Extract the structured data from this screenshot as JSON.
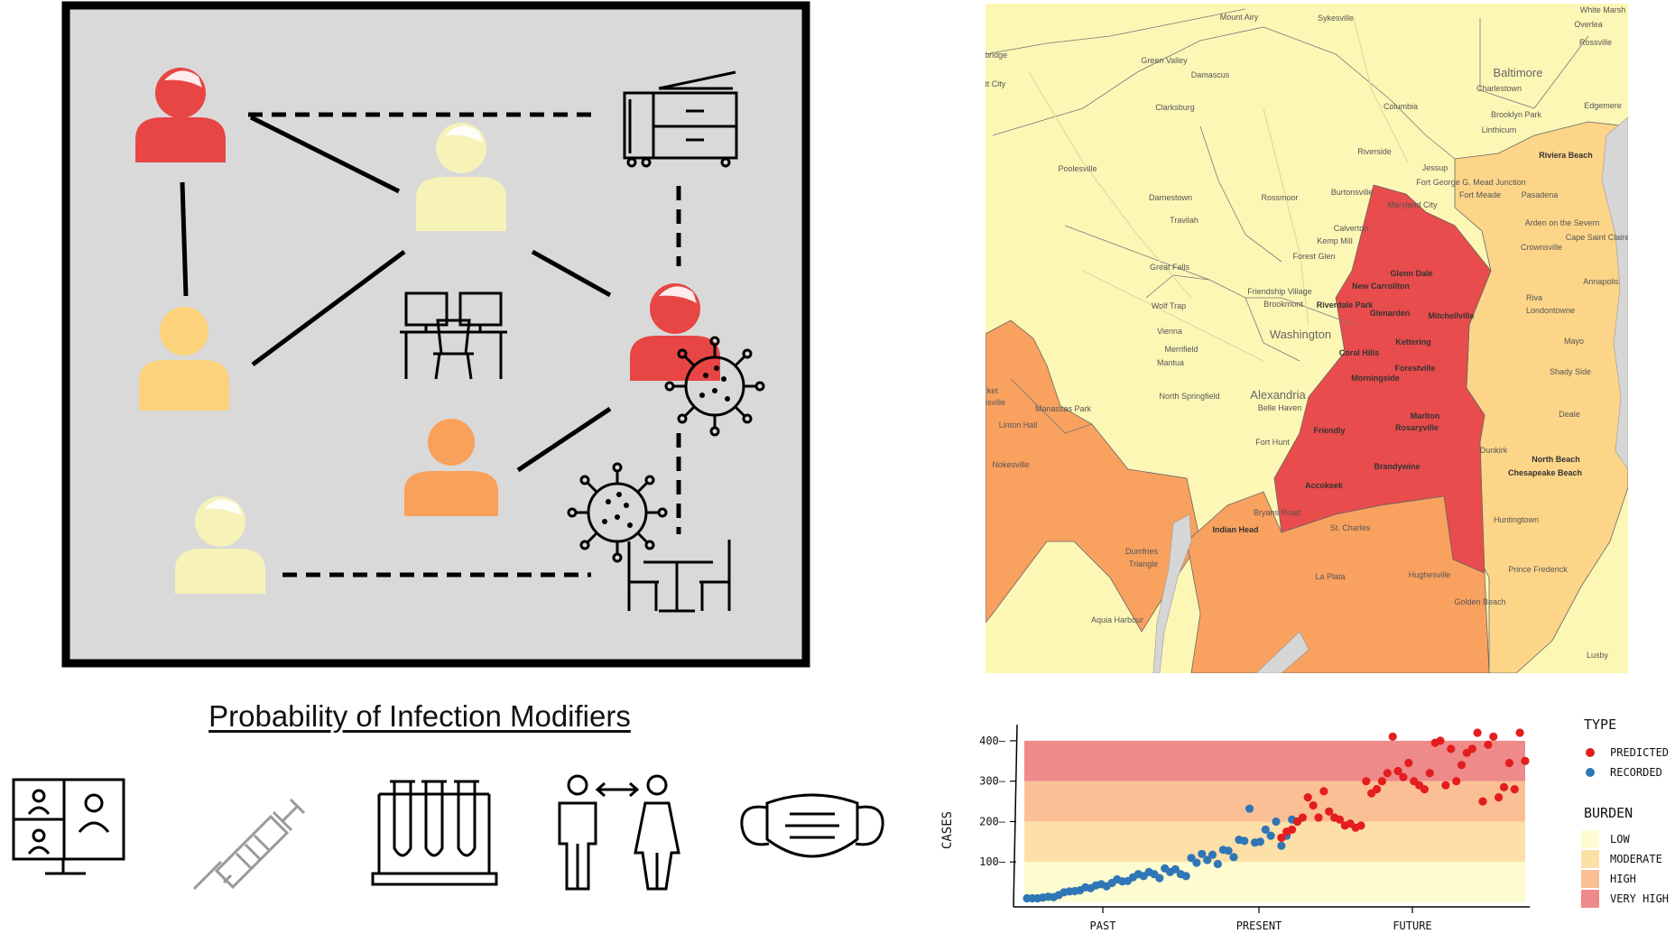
{
  "diagram": {
    "title": "Probability of Infection Modifiers",
    "people": [
      {
        "id": "p1",
        "status": "infected",
        "color": "#e84545"
      },
      {
        "id": "p2",
        "status": "low",
        "color": "#f6f2b8"
      },
      {
        "id": "p3",
        "status": "moderate",
        "color": "#fcd27a"
      },
      {
        "id": "p4",
        "status": "infected",
        "color": "#e84545"
      },
      {
        "id": "p5",
        "status": "high",
        "color": "#f9a05a"
      },
      {
        "id": "p6",
        "status": "low",
        "color": "#f6f2b8"
      }
    ],
    "objects": [
      "printer-icon",
      "workstation-icon",
      "cafe-table-icon",
      "virus-icon"
    ],
    "modifiers": [
      "video-call-icon",
      "syringe-icon",
      "test-tubes-icon",
      "social-distance-icon",
      "face-mask-icon"
    ]
  },
  "map": {
    "colors": {
      "low": "#fdf7b6",
      "moderate": "#fdd589",
      "high": "#f9a15f",
      "very_high": "#e84c4c",
      "water": "#d6d6d6"
    },
    "places": [
      {
        "name": "Mount Airy"
      },
      {
        "name": "Sykesville"
      },
      {
        "name": "White Marsh"
      },
      {
        "name": "Overlea"
      },
      {
        "name": "Rossville"
      },
      {
        "name": "Baltimore"
      },
      {
        "name": "Green Valley"
      },
      {
        "name": "Damascus"
      },
      {
        "name": "Charlestown"
      },
      {
        "name": "Edgemere"
      },
      {
        "name": "Clarksburg"
      },
      {
        "name": "Columbia"
      },
      {
        "name": "Brooklyn Park"
      },
      {
        "name": "Linthicum"
      },
      {
        "name": "Riviera Beach"
      },
      {
        "name": "Poolesville"
      },
      {
        "name": "Riverside"
      },
      {
        "name": "Jessup"
      },
      {
        "name": "Fort George G. Mead Junction"
      },
      {
        "name": "Fort Meade"
      },
      {
        "name": "Pasadena"
      },
      {
        "name": "Darnestown"
      },
      {
        "name": "Rossmoor"
      },
      {
        "name": "Burtonsville"
      },
      {
        "name": "Maryland City"
      },
      {
        "name": "Travilah"
      },
      {
        "name": "Calverton"
      },
      {
        "name": "Arden on the Severn"
      },
      {
        "name": "Kemp Mill"
      },
      {
        "name": "Cape Saint Claire"
      },
      {
        "name": "Forest Glen"
      },
      {
        "name": "Crownsville"
      },
      {
        "name": "Great Falls"
      },
      {
        "name": "Glenn Dale"
      },
      {
        "name": "New Carrollton"
      },
      {
        "name": "Annapolis"
      },
      {
        "name": "Friendship Village"
      },
      {
        "name": "Riva"
      },
      {
        "name": "Wolf Trap"
      },
      {
        "name": "Brookmont"
      },
      {
        "name": "Riverdale Park"
      },
      {
        "name": "Glenarden"
      },
      {
        "name": "Mitchellville"
      },
      {
        "name": "Londontowne"
      },
      {
        "name": "Washington"
      },
      {
        "name": "Vienna"
      },
      {
        "name": "Merrifield"
      },
      {
        "name": "Mantua"
      },
      {
        "name": "Coral Hills"
      },
      {
        "name": "Kettering"
      },
      {
        "name": "Mayo"
      },
      {
        "name": "Shady Side"
      },
      {
        "name": "Forestville"
      },
      {
        "name": "Morningside"
      },
      {
        "name": "Alexandria"
      },
      {
        "name": "North Springfield"
      },
      {
        "name": "Belle Haven"
      },
      {
        "name": "Market"
      },
      {
        "name": "Gainesville"
      },
      {
        "name": "Manassas Park"
      },
      {
        "name": "Marlton"
      },
      {
        "name": "Rosaryville"
      },
      {
        "name": "Deale"
      },
      {
        "name": "Linton Hall"
      },
      {
        "name": "Friendly"
      },
      {
        "name": "Fort Hunt"
      },
      {
        "name": "Dunkirk"
      },
      {
        "name": "North Beach"
      },
      {
        "name": "Chesapeake Beach"
      },
      {
        "name": "Nokesville"
      },
      {
        "name": "Brandywine"
      },
      {
        "name": "Accokeek"
      },
      {
        "name": "Huntingtown"
      },
      {
        "name": "Bryans Road"
      },
      {
        "name": "Indian Head"
      },
      {
        "name": "St. Charles"
      },
      {
        "name": "Dumfries"
      },
      {
        "name": "Triangle"
      },
      {
        "name": "La Plata"
      },
      {
        "name": "Hughesville"
      },
      {
        "name": "Prince Frederick"
      },
      {
        "name": "Aquia Harbour"
      },
      {
        "name": "Golden Beach"
      },
      {
        "name": "Lusby"
      },
      {
        "name": "Woodbridge"
      },
      {
        "name": "Ellicott City"
      }
    ]
  },
  "chart_data": {
    "type": "scatter",
    "xlabel": "",
    "ylabel": "CASES",
    "xticks": [
      "PAST",
      "PRESENT",
      "FUTURE"
    ],
    "yticks": [
      "100",
      "200",
      "300",
      "400"
    ],
    "ylim": [
      0,
      440
    ],
    "x_index_range": [
      0,
      72
    ],
    "bands": [
      {
        "name": "LOW",
        "from": 0,
        "to": 100,
        "color": "#fdfcd0"
      },
      {
        "name": "MODERATE",
        "from": 100,
        "to": 200,
        "color": "#fde0a8"
      },
      {
        "name": "HIGH",
        "from": 200,
        "to": 300,
        "color": "#fbbf96"
      },
      {
        "name": "VERY HIGH",
        "from": 300,
        "to": 400,
        "color": "#ee8a8a"
      }
    ],
    "legend": {
      "type_title": "TYPE",
      "burden_title": "BURDEN",
      "placement": "right"
    },
    "series": [
      {
        "name": "RECORDED",
        "color": "#2f76b6",
        "points": [
          [
            0,
            10
          ],
          [
            1,
            10
          ],
          [
            2,
            10
          ],
          [
            3,
            12
          ],
          [
            4,
            14
          ],
          [
            5,
            13
          ],
          [
            6,
            18
          ],
          [
            7,
            25
          ],
          [
            8,
            27
          ],
          [
            9,
            28
          ],
          [
            10,
            30
          ],
          [
            11,
            37
          ],
          [
            12,
            35
          ],
          [
            13,
            42
          ],
          [
            14,
            45
          ],
          [
            15,
            40
          ],
          [
            16,
            48
          ],
          [
            17,
            57
          ],
          [
            18,
            52
          ],
          [
            19,
            53
          ],
          [
            20,
            62
          ],
          [
            21,
            70
          ],
          [
            22,
            65
          ],
          [
            23,
            75
          ],
          [
            24,
            70
          ],
          [
            25,
            60
          ],
          [
            26,
            84
          ],
          [
            27,
            75
          ],
          [
            28,
            82
          ],
          [
            29,
            70
          ],
          [
            30,
            65
          ],
          [
            31,
            110
          ],
          [
            32,
            98
          ],
          [
            33,
            120
          ],
          [
            34,
            105
          ],
          [
            35,
            118
          ],
          [
            36,
            95
          ],
          [
            37,
            130
          ],
          [
            38,
            128
          ],
          [
            39,
            112
          ],
          [
            40,
            155
          ],
          [
            41,
            152
          ],
          [
            42,
            232
          ],
          [
            43,
            148
          ],
          [
            44,
            150
          ],
          [
            45,
            180
          ],
          [
            46,
            165
          ],
          [
            47,
            200
          ],
          [
            48,
            140
          ],
          [
            49,
            165
          ],
          [
            50,
            205
          ],
          [
            51,
            200
          ]
        ]
      },
      {
        "name": "PREDICTED",
        "color": "#e41d1d",
        "points": [
          [
            48,
            160
          ],
          [
            49,
            175
          ],
          [
            50,
            180
          ],
          [
            51,
            200
          ],
          [
            52,
            210
          ],
          [
            53,
            260
          ],
          [
            54,
            240
          ],
          [
            55,
            210
          ],
          [
            56,
            275
          ],
          [
            57,
            225
          ],
          [
            58,
            210
          ],
          [
            59,
            205
          ],
          [
            60,
            190
          ],
          [
            61,
            195
          ],
          [
            62,
            185
          ],
          [
            63,
            190
          ],
          [
            64,
            300
          ],
          [
            65,
            270
          ],
          [
            66,
            280
          ],
          [
            67,
            300
          ],
          [
            68,
            320
          ],
          [
            69,
            410
          ],
          [
            70,
            325
          ],
          [
            71,
            310
          ],
          [
            72,
            345
          ],
          [
            73,
            300
          ],
          [
            74,
            290
          ],
          [
            75,
            280
          ],
          [
            76,
            320
          ],
          [
            77,
            395
          ],
          [
            78,
            400
          ],
          [
            79,
            290
          ],
          [
            80,
            380
          ],
          [
            81,
            300
          ],
          [
            82,
            340
          ],
          [
            83,
            370
          ],
          [
            84,
            380
          ],
          [
            85,
            420
          ],
          [
            86,
            250
          ],
          [
            87,
            390
          ],
          [
            88,
            410
          ],
          [
            89,
            260
          ],
          [
            90,
            285
          ],
          [
            91,
            345
          ],
          [
            92,
            280
          ],
          [
            93,
            420
          ],
          [
            94,
            350
          ]
        ]
      }
    ]
  }
}
